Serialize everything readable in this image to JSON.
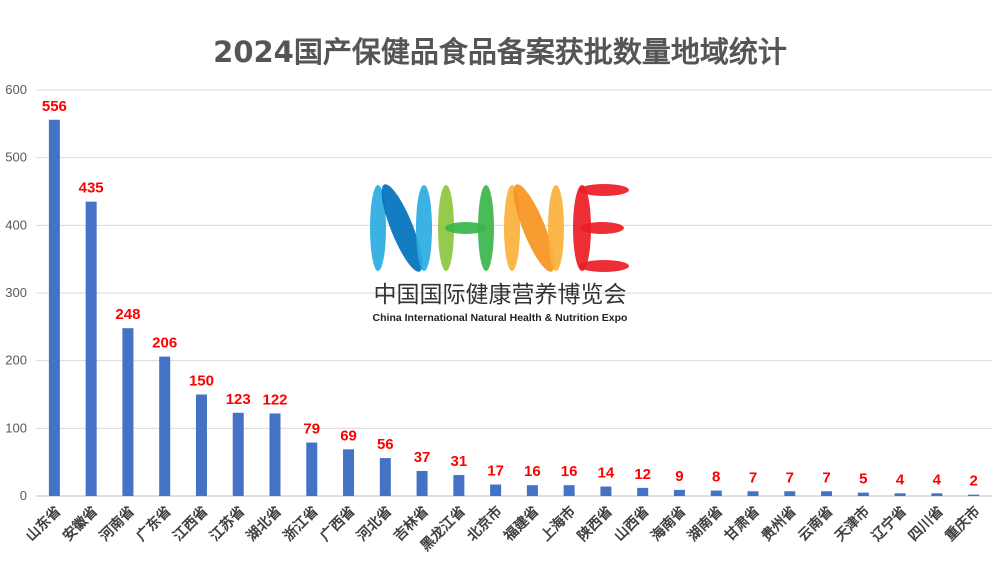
{
  "chart_data": {
    "type": "bar",
    "title": "2024国产保健品食品备案获批数量地域统计",
    "xlabel": "",
    "ylabel": "",
    "ylim": [
      0,
      600
    ],
    "yticks": [
      0,
      100,
      200,
      300,
      400,
      500,
      600
    ],
    "grid": true,
    "legend": "none",
    "categories": [
      "山东省",
      "安徽省",
      "河南省",
      "广东省",
      "江西省",
      "江苏省",
      "湖北省",
      "浙江省",
      "广西省",
      "河北省",
      "吉林省",
      "黑龙江省",
      "北京市",
      "福建省",
      "上海市",
      "陕西省",
      "山西省",
      "海南省",
      "湖南省",
      "甘肃省",
      "贵州省",
      "云南省",
      "天津市",
      "辽宁省",
      "四川省",
      "重庆市"
    ],
    "values": [
      556,
      435,
      248,
      206,
      150,
      123,
      122,
      79,
      69,
      56,
      37,
      31,
      17,
      16,
      16,
      14,
      12,
      9,
      8,
      7,
      7,
      7,
      5,
      4,
      4,
      2
    ],
    "colors": {
      "bar": "#4472c4",
      "data_label": "#ff0000",
      "grid": "#d9d9d9",
      "title": "#555555"
    }
  },
  "watermark": {
    "logo_text": "NHNE",
    "name_cn": "中国国际健康营养博览会",
    "name_en": "China International Natural Health & Nutrition Expo",
    "colors": [
      "#29abe2",
      "#0071bc",
      "#8cc63f",
      "#39b54a",
      "#fbb03b",
      "#f7931e",
      "#ed1c24"
    ]
  }
}
